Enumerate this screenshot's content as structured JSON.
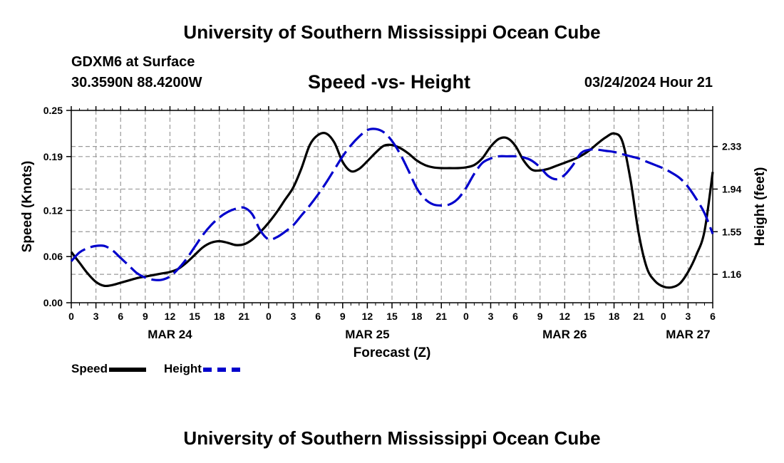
{
  "header": {
    "title": "University of Southern Mississippi Ocean Cube",
    "station": "GDXM6 at Surface",
    "coords": "30.3590N  88.4200W",
    "date": "03/24/2024 Hour 21"
  },
  "footer": {
    "title": "University of Southern Mississippi Ocean Cube"
  },
  "legend": {
    "speed_label": "Speed",
    "height_label": "Height"
  },
  "chart_data": {
    "type": "line",
    "title": "Speed -vs- Height",
    "xlabel": "Forecast (Z)",
    "ylabel": "Speed (Knots)",
    "y2label": "Height (feet)",
    "xlim": [
      0,
      78
    ],
    "ylim": [
      0,
      0.25
    ],
    "y2lim": [
      0.9,
      2.66
    ],
    "y_ticks": [
      "0.00",
      "0.06",
      "0.12",
      "0.19",
      "0.25"
    ],
    "y2_ticks": [
      "1.16",
      "1.55",
      "1.94",
      "2.33"
    ],
    "x_tick_labels": [
      "0",
      "3",
      "6",
      "9",
      "12",
      "15",
      "18",
      "21",
      "0",
      "3",
      "6",
      "9",
      "12",
      "15",
      "18",
      "21",
      "0",
      "3",
      "6",
      "9",
      "12",
      "15",
      "18",
      "21",
      "0",
      "3",
      "6"
    ],
    "date_labels": [
      {
        "label": "MAR 24",
        "hour": 12
      },
      {
        "label": "MAR 25",
        "hour": 36
      },
      {
        "label": "MAR 26",
        "hour": 60
      },
      {
        "label": "MAR 27",
        "hour": 75
      }
    ],
    "grid": true,
    "colors": {
      "speed": "#000000",
      "height": "#0000cc",
      "grid": "#999999"
    },
    "x": [
      0,
      1,
      2,
      3,
      4,
      5,
      6,
      7,
      8,
      9,
      10,
      11,
      12,
      13,
      14,
      15,
      16,
      17,
      18,
      19,
      20,
      21,
      22,
      23,
      24,
      25,
      26,
      27,
      28,
      29,
      30,
      31,
      32,
      33,
      34,
      35,
      36,
      37,
      38,
      39,
      40,
      41,
      42,
      43,
      44,
      45,
      46,
      47,
      48,
      49,
      50,
      51,
      52,
      53,
      54,
      55,
      56,
      57,
      58,
      59,
      60,
      61,
      62,
      63,
      64,
      65,
      66,
      67,
      68,
      69,
      70,
      71,
      72,
      73,
      74,
      75,
      76,
      77,
      78
    ],
    "series": [
      {
        "name": "Speed",
        "axis": "left",
        "style": "solid",
        "values": [
          0.066,
          0.052,
          0.038,
          0.027,
          0.022,
          0.023,
          0.026,
          0.029,
          0.032,
          0.034,
          0.036,
          0.038,
          0.04,
          0.044,
          0.052,
          0.062,
          0.072,
          0.078,
          0.08,
          0.078,
          0.075,
          0.076,
          0.082,
          0.092,
          0.104,
          0.118,
          0.134,
          0.15,
          0.175,
          0.205,
          0.218,
          0.22,
          0.208,
          0.183,
          0.171,
          0.174,
          0.184,
          0.195,
          0.204,
          0.205,
          0.201,
          0.194,
          0.185,
          0.179,
          0.176,
          0.175,
          0.175,
          0.175,
          0.176,
          0.179,
          0.188,
          0.203,
          0.213,
          0.214,
          0.204,
          0.185,
          0.173,
          0.172,
          0.174,
          0.178,
          0.182,
          0.186,
          0.191,
          0.198,
          0.207,
          0.215,
          0.22,
          0.21,
          0.16,
          0.09,
          0.045,
          0.028,
          0.021,
          0.02,
          0.025,
          0.04,
          0.062,
          0.093,
          0.17
        ]
      },
      {
        "name": "Height",
        "axis": "right",
        "style": "dashed",
        "values": [
          1.28,
          1.36,
          1.4,
          1.42,
          1.42,
          1.38,
          1.31,
          1.24,
          1.17,
          1.13,
          1.11,
          1.11,
          1.14,
          1.21,
          1.3,
          1.41,
          1.52,
          1.61,
          1.68,
          1.73,
          1.76,
          1.77,
          1.71,
          1.56,
          1.48,
          1.5,
          1.55,
          1.61,
          1.7,
          1.79,
          1.89,
          2.0,
          2.12,
          2.24,
          2.34,
          2.42,
          2.48,
          2.49,
          2.46,
          2.38,
          2.26,
          2.11,
          1.95,
          1.85,
          1.8,
          1.79,
          1.8,
          1.85,
          1.95,
          2.08,
          2.18,
          2.22,
          2.24,
          2.24,
          2.24,
          2.23,
          2.2,
          2.14,
          2.06,
          2.03,
          2.07,
          2.16,
          2.27,
          2.3,
          2.3,
          2.29,
          2.28,
          2.26,
          2.24,
          2.22,
          2.19,
          2.16,
          2.13,
          2.09,
          2.04,
          1.96,
          1.85,
          1.72,
          1.53
        ]
      }
    ]
  }
}
